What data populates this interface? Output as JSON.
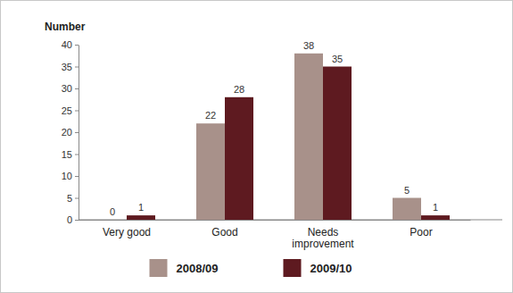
{
  "chart_data": {
    "type": "bar",
    "y_label": "Number",
    "categories": [
      "Very good",
      "Good",
      "Needs improvement",
      "Poor"
    ],
    "series": [
      {
        "name": "2008/09",
        "color": "#a8918a",
        "values": [
          0,
          22,
          38,
          5
        ]
      },
      {
        "name": "2009/10",
        "color": "#5e1a20",
        "values": [
          1,
          28,
          35,
          1
        ]
      }
    ],
    "ylim": [
      0,
      40
    ],
    "yticks": [
      0,
      5,
      10,
      15,
      20,
      25,
      30,
      35,
      40
    ],
    "grid": false,
    "legend": "bottom",
    "data_labels": true
  }
}
